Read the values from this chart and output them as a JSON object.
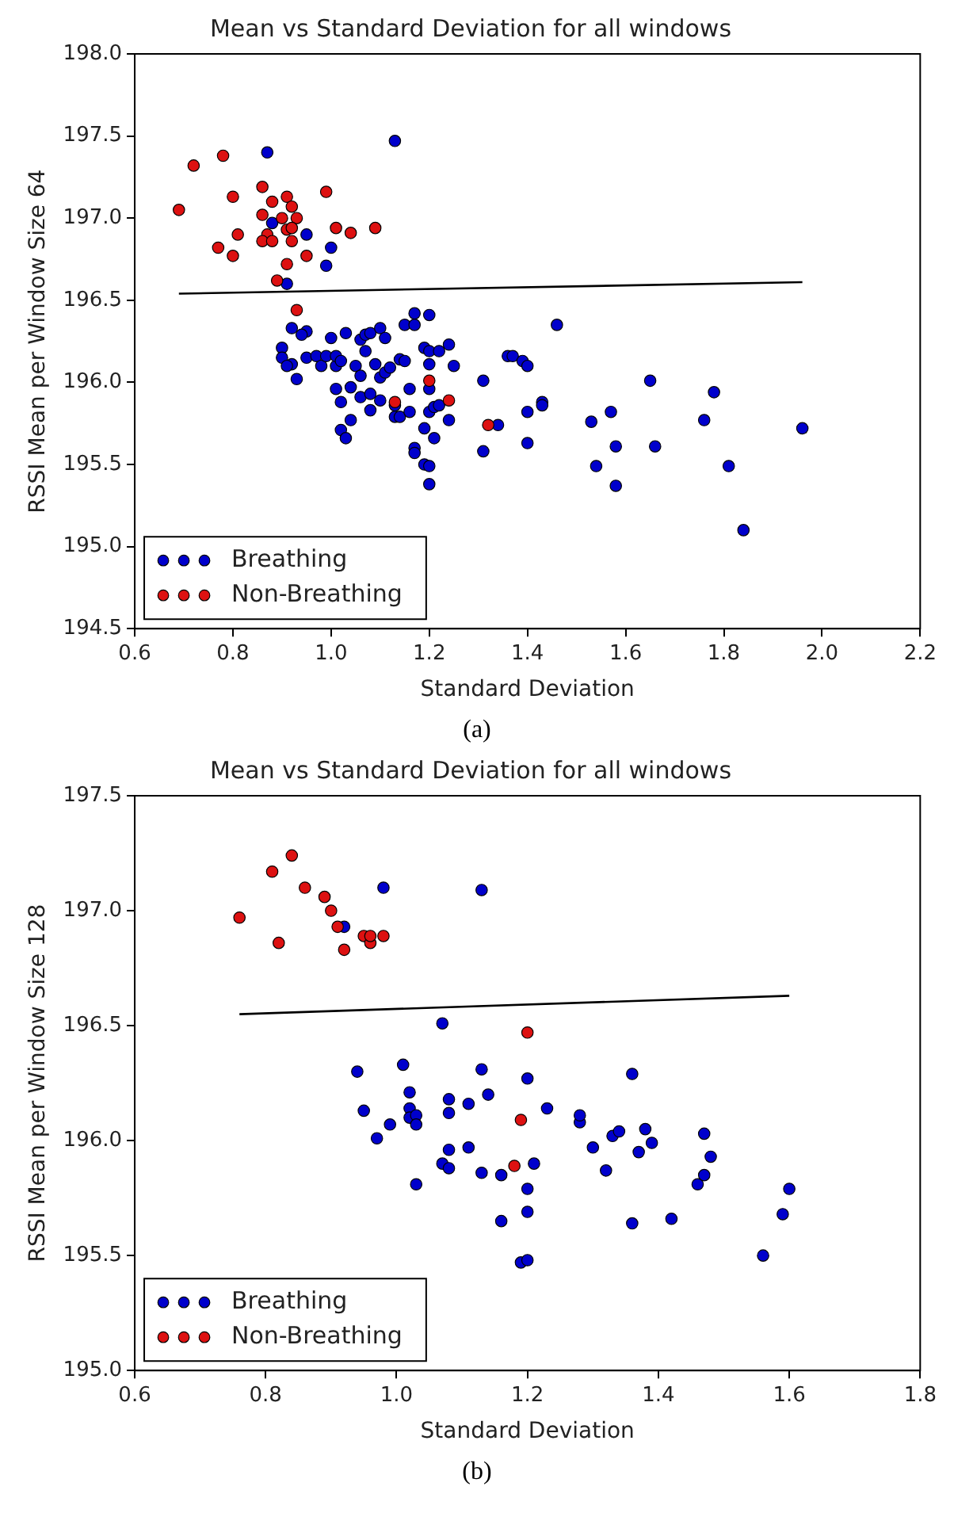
{
  "chart_data": [
    {
      "type": "scatter",
      "title": "Mean vs Standard Deviation for all windows",
      "xlabel": "Standard Deviation",
      "ylabel": "RSSI Mean per Window Size 64",
      "annotations": [
        "(a)"
      ],
      "xlim": [
        0.6,
        2.2
      ],
      "xticks": [
        {
          "value": 0.6,
          "label": "0.6"
        },
        {
          "value": 0.8,
          "label": "0.8"
        },
        {
          "value": 1.0,
          "label": "1.0"
        },
        {
          "value": 1.2,
          "label": "1.2"
        },
        {
          "value": 1.4,
          "label": "1.4"
        },
        {
          "value": 1.6,
          "label": "1.6"
        },
        {
          "value": 1.8,
          "label": "1.8"
        },
        {
          "value": 2.0,
          "label": "2.0"
        },
        {
          "value": 2.2,
          "label": "2.2"
        }
      ],
      "ylim": [
        194.5,
        198.0
      ],
      "yticks": [
        {
          "value": 194.5,
          "label": "194.5"
        },
        {
          "value": 195.0,
          "label": "195.0"
        },
        {
          "value": 195.5,
          "label": "195.5"
        },
        {
          "value": 196.0,
          "label": "196.0"
        },
        {
          "value": 196.5,
          "label": "196.5"
        },
        {
          "value": 197.0,
          "label": "197.0"
        },
        {
          "value": 197.5,
          "label": "197.5"
        },
        {
          "value": 198.0,
          "label": "198.0"
        }
      ],
      "grid": false,
      "legend": "bottom left",
      "marker": "circle",
      "series": [
        {
          "name": "Breathing",
          "color": "#0000cc",
          "x": [
            0.87,
            1.13,
            0.88,
            0.95,
            1.0,
            0.99,
            0.91,
            0.92,
            0.95,
            0.94,
            0.9,
            0.9,
            0.92,
            0.91,
            0.93,
            0.95,
            0.97,
            0.98,
            0.99,
            1.0,
            1.01,
            1.01,
            1.02,
            1.03,
            1.01,
            1.02,
            1.04,
            1.04,
            1.02,
            1.03,
            1.05,
            1.06,
            1.06,
            1.06,
            1.07,
            1.07,
            1.08,
            1.08,
            1.08,
            1.09,
            1.1,
            1.1,
            1.11,
            1.11,
            1.12,
            1.1,
            1.13,
            1.13,
            1.14,
            1.14,
            1.15,
            1.15,
            1.16,
            1.16,
            1.17,
            1.17,
            1.2,
            1.19,
            1.2,
            1.22,
            1.24,
            1.25,
            1.2,
            1.2,
            1.2,
            1.21,
            1.22,
            1.24,
            1.19,
            1.21,
            1.17,
            1.17,
            1.19,
            1.2,
            1.2,
            1.31,
            1.31,
            1.34,
            1.36,
            1.37,
            1.39,
            1.4,
            1.4,
            1.4,
            1.43,
            1.43,
            1.46,
            1.53,
            1.57,
            1.58,
            1.54,
            1.58,
            1.65,
            1.66,
            1.78,
            1.76,
            1.81,
            1.84,
            1.96
          ],
          "values": [
            197.4,
            197.47,
            196.97,
            196.9,
            196.82,
            196.71,
            196.6,
            196.33,
            196.31,
            196.29,
            196.21,
            196.15,
            196.11,
            196.1,
            196.02,
            196.15,
            196.16,
            196.1,
            196.16,
            196.27,
            196.1,
            196.16,
            196.13,
            196.3,
            195.96,
            195.88,
            195.97,
            195.77,
            195.71,
            195.66,
            196.1,
            196.04,
            195.91,
            196.26,
            196.29,
            196.19,
            195.93,
            195.83,
            196.3,
            196.11,
            196.03,
            196.33,
            196.27,
            196.06,
            196.09,
            195.89,
            195.86,
            195.79,
            195.79,
            196.14,
            196.13,
            196.35,
            195.82,
            195.96,
            196.42,
            196.35,
            196.41,
            196.21,
            196.19,
            196.19,
            196.23,
            196.1,
            196.11,
            195.96,
            195.82,
            195.85,
            195.86,
            195.77,
            195.72,
            195.66,
            195.6,
            195.57,
            195.5,
            195.49,
            195.38,
            196.01,
            195.58,
            195.74,
            196.16,
            196.16,
            196.13,
            196.1,
            195.63,
            195.82,
            195.88,
            195.86,
            196.35,
            195.76,
            195.82,
            195.61,
            195.49,
            195.37,
            196.01,
            195.61,
            195.94,
            195.77,
            195.49,
            195.1,
            195.72
          ]
        },
        {
          "name": "Non-Breathing",
          "color": "#dd1111",
          "x": [
            0.69,
            0.72,
            0.78,
            0.8,
            0.81,
            0.77,
            0.8,
            0.86,
            0.88,
            0.91,
            0.92,
            0.9,
            0.93,
            0.86,
            0.87,
            0.86,
            0.88,
            0.91,
            0.92,
            0.92,
            0.95,
            0.91,
            0.89,
            0.99,
            1.01,
            1.04,
            1.09,
            0.93,
            1.13,
            1.2,
            1.24,
            1.32
          ],
          "values": [
            197.05,
            197.32,
            197.38,
            197.13,
            196.9,
            196.82,
            196.77,
            197.19,
            197.1,
            197.13,
            197.07,
            197.0,
            197.0,
            197.02,
            196.9,
            196.86,
            196.86,
            196.93,
            196.94,
            196.86,
            196.77,
            196.72,
            196.62,
            197.16,
            196.94,
            196.91,
            196.94,
            196.44,
            195.88,
            196.01,
            195.89,
            195.74
          ]
        },
        {
          "type": "line",
          "marker": "none",
          "color": "#000000",
          "x": [
            0.69,
            1.96
          ],
          "values": [
            196.54,
            196.61
          ]
        }
      ]
    },
    {
      "type": "scatter",
      "title": "Mean vs Standard Deviation for all windows",
      "xlabel": "Standard Deviation",
      "ylabel": "RSSI Mean per Window Size 128",
      "annotations": [
        "(b)"
      ],
      "xlim": [
        0.6,
        1.8
      ],
      "xticks": [
        {
          "value": 0.6,
          "label": "0.6"
        },
        {
          "value": 0.8,
          "label": "0.8"
        },
        {
          "value": 1.0,
          "label": "1.0"
        },
        {
          "value": 1.2,
          "label": "1.2"
        },
        {
          "value": 1.4,
          "label": "1.4"
        },
        {
          "value": 1.6,
          "label": "1.6"
        },
        {
          "value": 1.8,
          "label": "1.8"
        }
      ],
      "ylim": [
        195.0,
        197.5
      ],
      "yticks": [
        {
          "value": 195.0,
          "label": "195.0"
        },
        {
          "value": 195.5,
          "label": "195.5"
        },
        {
          "value": 196.0,
          "label": "196.0"
        },
        {
          "value": 196.5,
          "label": "196.5"
        },
        {
          "value": 197.0,
          "label": "197.0"
        },
        {
          "value": 197.5,
          "label": "197.5"
        }
      ],
      "grid": false,
      "legend": "bottom left",
      "marker": "circle",
      "series": [
        {
          "name": "Breathing",
          "color": "#0000cc",
          "x": [
            0.98,
            1.13,
            0.92,
            1.07,
            0.94,
            1.01,
            1.13,
            1.2,
            1.02,
            1.14,
            0.95,
            1.02,
            1.02,
            1.03,
            1.03,
            0.99,
            1.08,
            1.08,
            1.11,
            0.97,
            1.08,
            1.11,
            1.07,
            1.08,
            1.13,
            1.16,
            1.21,
            1.2,
            1.2,
            1.16,
            1.03,
            1.19,
            1.2,
            1.23,
            1.28,
            1.28,
            1.3,
            1.32,
            1.33,
            1.34,
            1.36,
            1.37,
            1.38,
            1.39,
            1.36,
            1.42,
            1.46,
            1.47,
            1.48,
            1.47,
            1.56,
            1.59,
            1.6
          ],
          "values": [
            197.1,
            197.09,
            196.93,
            196.51,
            196.3,
            196.33,
            196.31,
            196.27,
            196.21,
            196.2,
            196.13,
            196.14,
            196.1,
            196.11,
            196.07,
            196.07,
            196.18,
            196.12,
            196.16,
            196.01,
            195.96,
            195.97,
            195.9,
            195.88,
            195.86,
            195.85,
            195.9,
            195.79,
            195.69,
            195.65,
            195.81,
            195.47,
            195.48,
            196.14,
            196.08,
            196.11,
            195.97,
            195.87,
            196.02,
            196.04,
            196.29,
            195.95,
            196.05,
            195.99,
            195.64,
            195.66,
            195.81,
            196.03,
            195.93,
            195.85,
            195.5,
            195.68,
            195.79
          ]
        },
        {
          "name": "Non-Breathing",
          "color": "#dd1111",
          "x": [
            0.76,
            0.81,
            0.84,
            0.86,
            0.89,
            0.9,
            0.91,
            0.92,
            0.82,
            0.95,
            0.96,
            0.96,
            0.98,
            1.2,
            1.19,
            1.18
          ],
          "values": [
            196.97,
            197.17,
            197.24,
            197.1,
            197.06,
            197.0,
            196.93,
            196.83,
            196.86,
            196.89,
            196.86,
            196.89,
            196.89,
            196.47,
            196.09,
            195.89
          ]
        },
        {
          "type": "line",
          "marker": "none",
          "color": "#000000",
          "x": [
            0.76,
            1.6
          ],
          "values": [
            196.55,
            196.63
          ]
        }
      ]
    }
  ]
}
